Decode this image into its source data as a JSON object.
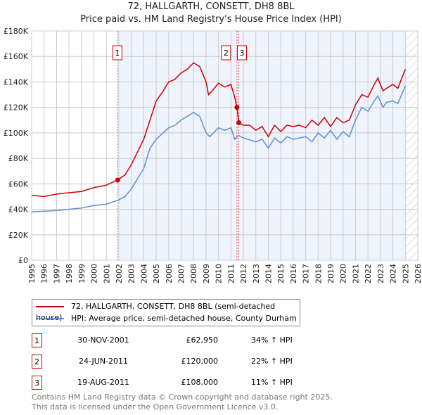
{
  "chart_data": {
    "type": "line",
    "title": "72, HALLGARTH, CONSETT, DH8 8BL",
    "subtitle": "Price paid vs. HM Land Registry's House Price Index (HPI)",
    "xlim": [
      1995,
      2026
    ],
    "ylim": [
      0,
      180000
    ],
    "x_ticks": [
      "1995",
      "1996",
      "1997",
      "1998",
      "1999",
      "2000",
      "2001",
      "2002",
      "2003",
      "2004",
      "2005",
      "2006",
      "2007",
      "2008",
      "2009",
      "2010",
      "2011",
      "2012",
      "2013",
      "2014",
      "2015",
      "2016",
      "2017",
      "2018",
      "2019",
      "2020",
      "2021",
      "2022",
      "2023",
      "2024",
      "2025",
      "2026"
    ],
    "y_ticks": [
      "£0",
      "£20K",
      "£40K",
      "£60K",
      "£80K",
      "£100K",
      "£120K",
      "£140K",
      "£160K",
      "£180K"
    ],
    "grid": true,
    "series": [
      {
        "name": "72, HALLGARTH, CONSETT, DH8 8BL (semi-detached house)",
        "color": "#cc0000",
        "x": [
          1995,
          1996,
          1997,
          1998,
          1999,
          2000,
          2001,
          2001.9,
          2002.5,
          2003,
          2003.5,
          2004,
          2004.5,
          2005,
          2005.5,
          2006,
          2006.5,
          2007,
          2007.5,
          2008,
          2008.5,
          2009,
          2009.2,
          2009.5,
          2010,
          2010.5,
          2011,
          2011.3,
          2011.48,
          2011.63,
          2012,
          2012.5,
          2013,
          2013.5,
          2014,
          2014.5,
          2015,
          2015.5,
          2016,
          2016.5,
          2017,
          2017.5,
          2018,
          2018.5,
          2019,
          2019.5,
          2020,
          2020.5,
          2021,
          2021.5,
          2022,
          2022.5,
          2022.8,
          2023.2,
          2023.5,
          2024,
          2024.4,
          2025
        ],
        "y": [
          51000,
          50000,
          52000,
          53000,
          54000,
          57000,
          59000,
          63000,
          67000,
          75000,
          85000,
          95000,
          110000,
          125000,
          132000,
          140000,
          142000,
          147000,
          150000,
          155000,
          152000,
          140000,
          130000,
          133000,
          139000,
          136000,
          138000,
          128000,
          120000,
          108000,
          106000,
          106000,
          102000,
          105000,
          97000,
          106000,
          101000,
          106000,
          105000,
          106000,
          104000,
          110000,
          106000,
          112000,
          105000,
          112000,
          108000,
          110000,
          122000,
          130000,
          128000,
          138000,
          143000,
          133000,
          135000,
          138000,
          135000,
          150000
        ]
      },
      {
        "name": "HPI: Average price, semi-detached house, County Durham",
        "color": "#5b8fd0",
        "x": [
          1995,
          1997,
          1998,
          1999,
          2000,
          2001,
          2001.9,
          2002.5,
          2003,
          2003.5,
          2004,
          2004.5,
          2005,
          2006,
          2006.5,
          2007,
          2008,
          2008.5,
          2009,
          2009.3,
          2010,
          2010.5,
          2011,
          2011.3,
          2011.6,
          2012,
          2013,
          2013.5,
          2014,
          2014.5,
          2015,
          2015.5,
          2016,
          2017,
          2017.5,
          2018,
          2018.5,
          2019,
          2019.5,
          2020,
          2020.5,
          2021,
          2021.5,
          2022,
          2022.5,
          2022.8,
          2023.2,
          2023.5,
          2024,
          2024.4,
          2025
        ],
        "y": [
          38000,
          39000,
          40000,
          41000,
          43000,
          44000,
          47000,
          50000,
          56000,
          64000,
          72000,
          88000,
          95000,
          104000,
          106000,
          110000,
          116000,
          113000,
          100000,
          97000,
          104000,
          102000,
          104000,
          95000,
          98000,
          96000,
          93000,
          95000,
          88000,
          96000,
          92000,
          97000,
          95000,
          97000,
          93000,
          100000,
          96000,
          102000,
          95000,
          101000,
          97000,
          110000,
          120000,
          117000,
          125000,
          129000,
          120000,
          124000,
          125000,
          123000,
          137000
        ]
      }
    ],
    "sales": [
      {
        "label": "1",
        "x": 2001.91,
        "y": 62950
      },
      {
        "label": "2",
        "x": 2011.48,
        "y": 120000
      },
      {
        "label": "3",
        "x": 2011.63,
        "y": 108000
      }
    ],
    "shaded_from": 2001.91,
    "hatched_from": 2025.1,
    "legend_position": "bottom"
  },
  "legend": [
    "72, HALLGARTH, CONSETT, DH8 8BL (semi-detached house)",
    "HPI: Average price, semi-detached house, County Durham"
  ],
  "table": [
    {
      "n": "1",
      "date": "30-NOV-2001",
      "price": "£62,950",
      "hpi": "34% ↑ HPI"
    },
    {
      "n": "2",
      "date": "24-JUN-2011",
      "price": "£120,000",
      "hpi": "22% ↑ HPI"
    },
    {
      "n": "3",
      "date": "19-AUG-2011",
      "price": "£108,000",
      "hpi": "11% ↑ HPI"
    }
  ],
  "footer": [
    "Contains HM Land Registry data © Crown copyright and database right 2025.",
    "This data is licensed under the Open Government Licence v3.0."
  ]
}
